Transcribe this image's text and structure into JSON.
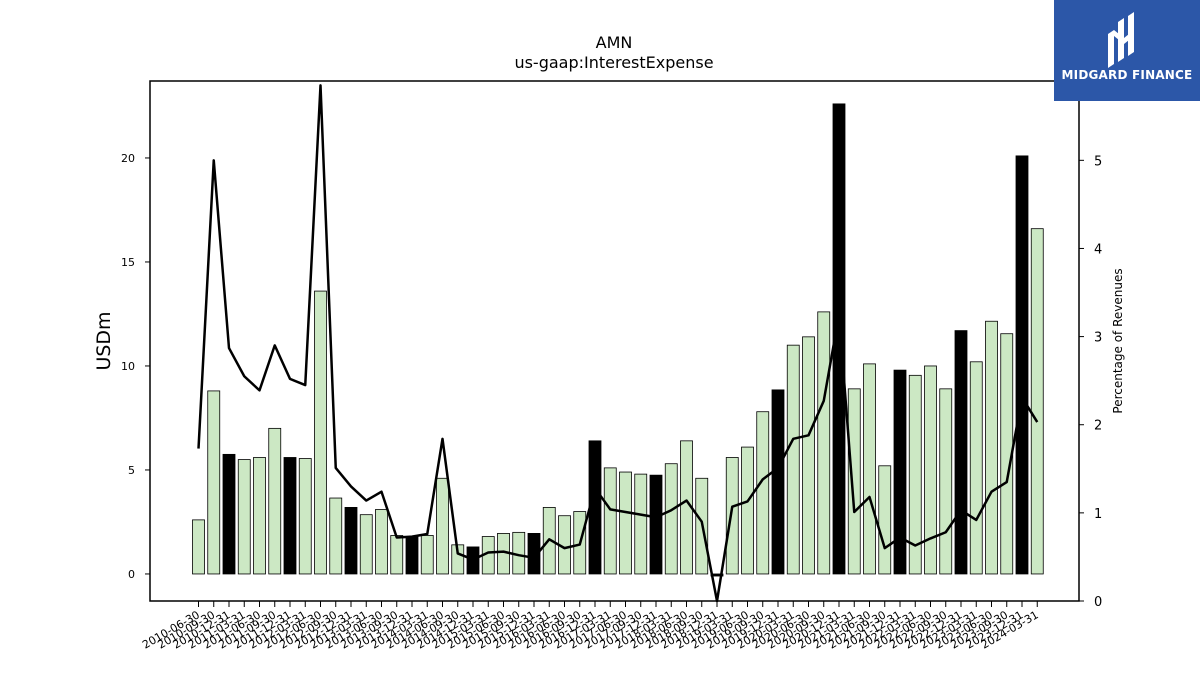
{
  "chart_data": {
    "type": "bar",
    "title": "AMN",
    "subtitle": "us-gaap:InterestExpense",
    "ylabel": "USDm",
    "y2label": "Percentage of Revenues",
    "ylim": [
      -1.3,
      23.7
    ],
    "y2lim": [
      0,
      5.9
    ],
    "yticks": [
      0,
      5,
      10,
      15,
      20
    ],
    "y2ticks": [
      0,
      1,
      2,
      3,
      4,
      5
    ],
    "categories": [
      "2010-06-30",
      "2010-09-30",
      "2010-12-31",
      "2011-03-31",
      "2011-06-30",
      "2011-09-30",
      "2011-12-31",
      "2012-03-31",
      "2012-06-30",
      "2012-09-30",
      "2012-12-31",
      "2013-03-31",
      "2013-06-30",
      "2013-09-30",
      "2013-12-31",
      "2014-03-31",
      "2014-06-30",
      "2014-09-30",
      "2014-12-31",
      "2015-03-31",
      "2015-06-30",
      "2015-09-30",
      "2015-12-31",
      "2016-03-31",
      "2016-06-30",
      "2016-09-30",
      "2016-12-31",
      "2017-03-31",
      "2017-06-30",
      "2017-09-30",
      "2017-12-31",
      "2018-03-31",
      "2018-06-30",
      "2018-09-30",
      "2018-12-31",
      "2019-03-31",
      "2019-06-30",
      "2019-09-30",
      "2019-12-31",
      "2020-03-31",
      "2020-06-30",
      "2020-09-30",
      "2020-12-31",
      "2021-03-31",
      "2021-06-30",
      "2021-09-30",
      "2021-12-31",
      "2022-03-31",
      "2022-06-30",
      "2022-09-30",
      "2022-12-31",
      "2023-03-31",
      "2023-06-30",
      "2023-09-30",
      "2023-12-31",
      "2024-03-31"
    ],
    "series": [
      {
        "name": "",
        "type": "bar",
        "values": [
          2.6,
          8.8,
          5.75,
          5.5,
          5.6,
          7.0,
          5.6,
          5.55,
          13.6,
          3.65,
          3.2,
          2.85,
          3.1,
          1.85,
          1.8,
          1.85,
          4.6,
          1.4,
          1.3,
          1.8,
          1.95,
          2.0,
          1.95,
          3.2,
          2.8,
          3.0,
          6.4,
          5.1,
          4.9,
          4.8,
          4.75,
          5.3,
          6.4,
          4.6,
          -0.1,
          5.6,
          6.1,
          7.8,
          8.85,
          11.0,
          11.4,
          12.6,
          22.6,
          8.9,
          10.1,
          5.2,
          9.8,
          9.55,
          10.0,
          8.9,
          11.7,
          10.2,
          12.15,
          11.55,
          20.1,
          16.6
        ],
        "annual": [
          false,
          false,
          true,
          false,
          false,
          false,
          true,
          false,
          false,
          false,
          true,
          false,
          false,
          false,
          true,
          false,
          false,
          false,
          true,
          false,
          false,
          false,
          true,
          false,
          false,
          false,
          true,
          false,
          false,
          false,
          true,
          false,
          false,
          false,
          true,
          false,
          false,
          false,
          true,
          false,
          false,
          false,
          true,
          false,
          false,
          false,
          true,
          false,
          false,
          false,
          true,
          false,
          false,
          false,
          true,
          false
        ]
      },
      {
        "name": "",
        "type": "line",
        "axis": "right",
        "values": [
          1.73,
          5.0,
          2.87,
          2.55,
          2.39,
          2.9,
          2.52,
          2.45,
          5.85,
          1.51,
          1.3,
          1.14,
          1.24,
          0.72,
          0.73,
          0.76,
          1.84,
          0.54,
          0.47,
          0.55,
          0.56,
          0.52,
          0.49,
          0.7,
          0.6,
          0.64,
          1.28,
          1.04,
          1.01,
          0.98,
          0.95,
          1.03,
          1.14,
          0.9,
          0.0,
          1.07,
          1.13,
          1.38,
          1.51,
          1.84,
          1.88,
          2.27,
          3.25,
          1.01,
          1.18,
          0.6,
          0.72,
          0.63,
          0.71,
          0.78,
          1.03,
          0.92,
          1.24,
          1.35,
          2.31,
          2.03
        ]
      }
    ],
    "colors": {
      "bar_regular": "#cce8c4",
      "bar_annual": "#000000",
      "line": "#000000"
    },
    "grid": false,
    "legend": "none"
  },
  "logo": {
    "text": "MIDGARD FINANCE"
  }
}
